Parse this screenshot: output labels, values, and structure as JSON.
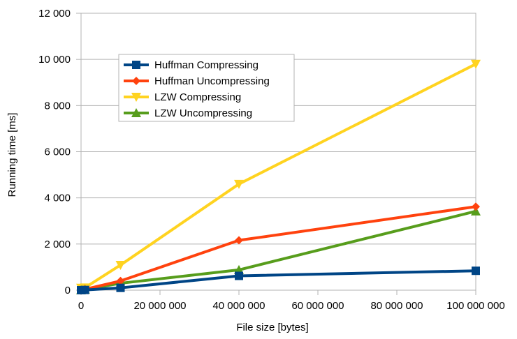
{
  "chart_data": {
    "type": "line",
    "xlabel": "File size [bytes]",
    "ylabel": "Running time [ms]",
    "xlim": [
      0,
      100000000
    ],
    "ylim": [
      0,
      12000
    ],
    "x_ticks": [
      0,
      20000000,
      40000000,
      60000000,
      80000000,
      100000000
    ],
    "x_tick_labels": [
      "0",
      "20 000 000",
      "40 000 000",
      "60 000 000",
      "80 000 000",
      "100 000 000"
    ],
    "y_ticks": [
      0,
      2000,
      4000,
      6000,
      8000,
      10000,
      12000
    ],
    "y_tick_labels": [
      "0",
      "2 000",
      "4 000",
      "6 000",
      "8 000",
      "10 000",
      "12 000"
    ],
    "grid": "horizontal",
    "legend_position": "top-left",
    "x": [
      0,
      1000000,
      10000000,
      40000000,
      100000000
    ],
    "series": [
      {
        "name": "Huffman Compressing",
        "color": "#004586",
        "marker": "square",
        "values": [
          0,
          10,
          100,
          620,
          840
        ]
      },
      {
        "name": "Huffman Uncompressing",
        "color": "#ff420e",
        "marker": "diamond",
        "values": [
          0,
          40,
          400,
          2160,
          3620
        ]
      },
      {
        "name": "LZW Compressing",
        "color": "#ffd320",
        "marker": "triangle-down",
        "values": [
          100,
          110,
          1090,
          4600,
          9800
        ]
      },
      {
        "name": "LZW Uncompressing",
        "color": "#579d1c",
        "marker": "triangle-up",
        "values": [
          0,
          30,
          300,
          880,
          3420
        ]
      }
    ]
  }
}
